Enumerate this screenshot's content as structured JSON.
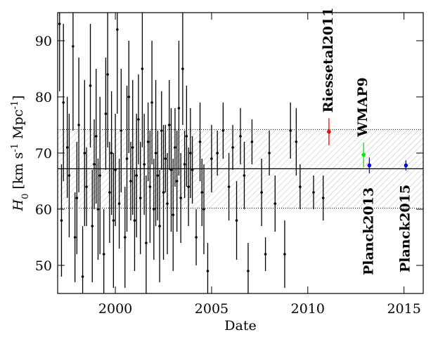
{
  "chart_data": {
    "type": "errorbar",
    "xlabel": "Date",
    "ylabel": [
      "H",
      "0",
      " [km s",
      "-1",
      " Mpc",
      "-1",
      "]"
    ],
    "xlim": [
      1997,
      2016
    ],
    "ylim": [
      45,
      95
    ],
    "xticks": [
      2000,
      2005,
      2010,
      2015
    ],
    "yticks": [
      50,
      60,
      70,
      80,
      90
    ],
    "band": {
      "low": 60.2,
      "center": 67.2,
      "high": 74.2
    },
    "series": [
      {
        "color": "#000000",
        "x": [
          1997.1,
          1997.2,
          1997.3,
          1997.5,
          1997.6,
          1997.8,
          1997.9,
          1998.0,
          1998.1,
          1998.3,
          1998.4,
          1998.5,
          1998.7,
          1998.8,
          1998.9,
          1999.0,
          1999.1,
          1999.2,
          1999.4,
          1999.5,
          1999.6,
          1999.7,
          1999.8,
          1999.9,
          2000.0,
          2000.1,
          2000.2,
          2000.3,
          2000.5,
          2000.6,
          2000.7,
          2000.8,
          2000.9,
          2001.0,
          2001.1,
          2001.2,
          2001.3,
          2001.4,
          2001.5,
          2001.6,
          2001.7,
          2001.8,
          2001.9,
          2002.0,
          2002.1,
          2002.2,
          2002.3,
          2002.4,
          2002.5,
          2002.6,
          2002.7,
          2002.8,
          2002.9,
          2003.0,
          2003.1,
          2003.2,
          2003.3,
          2003.4,
          2003.5,
          2003.6,
          2003.7,
          2003.8,
          2003.9,
          2004.0,
          2004.2,
          2004.4,
          2004.5,
          2004.6,
          2004.8,
          2005.0,
          2005.3,
          2005.6,
          2005.9,
          2006.1,
          2006.3,
          2006.5,
          2006.7,
          2006.9,
          2007.1,
          2007.6,
          2007.8,
          2008.0,
          2008.3,
          2008.8,
          2009.1,
          2009.4,
          2009.6,
          2010.3,
          2010.8
        ],
        "values": [
          93,
          58,
          79,
          71,
          66,
          89,
          55,
          62,
          75,
          48,
          70,
          64,
          82,
          57,
          68,
          73,
          60,
          66,
          52,
          77,
          84,
          63,
          70,
          58,
          67,
          92,
          61,
          74,
          55,
          69,
          80,
          65,
          71,
          58,
          66,
          76,
          62,
          85,
          68,
          54,
          72,
          64,
          79,
          60,
          70,
          66,
          57,
          74,
          63,
          69,
          61,
          75,
          67,
          59,
          71,
          65,
          78,
          62,
          85,
          68,
          73,
          64,
          70,
          67,
          55,
          72,
          63,
          60,
          49,
          69,
          70,
          74,
          64,
          71,
          58,
          73,
          66,
          49,
          72,
          63,
          52,
          70,
          61,
          52,
          74,
          72,
          64,
          63,
          62
        ],
        "errors": [
          12,
          10,
          14,
          9,
          11,
          15,
          8,
          10,
          12,
          9,
          13,
          7,
          11,
          10,
          8,
          12,
          9,
          14,
          8,
          10,
          13,
          9,
          11,
          12,
          10,
          15,
          8,
          11,
          9,
          13,
          10,
          7,
          12,
          9,
          11,
          8,
          10,
          14,
          9,
          12,
          7,
          10,
          11,
          9,
          13,
          8,
          10,
          7,
          12,
          6,
          9,
          8,
          11,
          10,
          7,
          9,
          12,
          8,
          10,
          6,
          9,
          7,
          8,
          6,
          5,
          7,
          6,
          8,
          5,
          6,
          4,
          5,
          6,
          4,
          7,
          5,
          6,
          5,
          4,
          6,
          3,
          4,
          5,
          6,
          5,
          6,
          4,
          3,
          4
        ]
      },
      {
        "name": "Riessetal2011",
        "color": "#ff0000",
        "label_position": "above",
        "x": [
          2011.1
        ],
        "values": [
          73.8
        ],
        "errors": [
          2.4
        ]
      },
      {
        "name": "WMAP9",
        "color": "#00ee00",
        "label_position": "above",
        "x": [
          2012.9
        ],
        "values": [
          69.7
        ],
        "errors": [
          2.2
        ]
      },
      {
        "name": "Planck2013",
        "color": "#0000ff",
        "label_position": "below",
        "x": [
          2013.2
        ],
        "values": [
          67.8
        ],
        "errors": [
          1.4
        ]
      },
      {
        "name": "Planck2015",
        "color": "#0000ff",
        "label_position": "below",
        "x": [
          2015.1
        ],
        "values": [
          67.8
        ],
        "errors": [
          0.9
        ]
      }
    ]
  }
}
